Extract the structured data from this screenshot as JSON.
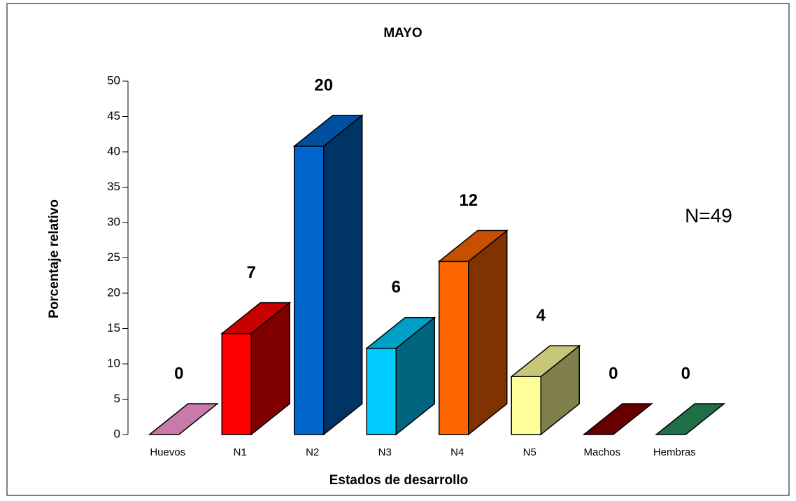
{
  "chart_data": {
    "type": "bar3d",
    "title": "MAYO",
    "x_label": "Estados de desarrollo",
    "y_label": "Porcentaje relativo",
    "annotation": "N=49",
    "categories": [
      "Huevos",
      "N1",
      "N2",
      "N3",
      "N4",
      "N5",
      "Machos",
      "Hembras"
    ],
    "values": [
      0,
      14.3,
      40.8,
      12.2,
      24.5,
      8.2,
      0,
      0
    ],
    "value_labels": [
      "0",
      "7",
      "20",
      "6",
      "12",
      "4",
      "0",
      "0"
    ],
    "colors": [
      "#c87aa8",
      "#ff0000",
      "#0066cc",
      "#00ccff",
      "#ff6600",
      "#ffff99",
      "#660000",
      "#1e6e46"
    ],
    "ylim": [
      0,
      50
    ],
    "yticks": [
      0,
      5,
      10,
      15,
      20,
      25,
      30,
      35,
      40,
      45,
      50
    ]
  }
}
